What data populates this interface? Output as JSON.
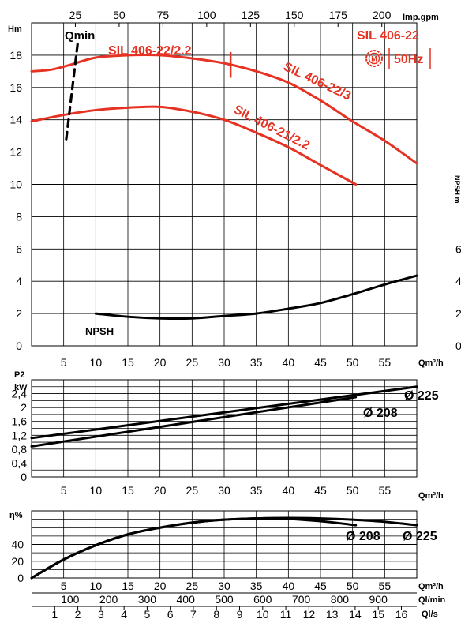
{
  "colors": {
    "curve_red": "#e63222",
    "curve_black": "#000000",
    "grid": "#000000",
    "badge_red": "#e63222"
  },
  "badge": {
    "model": "SIL 406-22",
    "freq": "50Hz",
    "icon": "motor-m-icon"
  },
  "units": {
    "imp_gpm": "Imp.gpm",
    "hm": "Hm",
    "qm3h": "Qm³/h",
    "p2": "P2",
    "kw": "kW",
    "eta": "η%",
    "ql_min": "Ql/min",
    "ql_s": "Ql/s"
  },
  "top_axis_ticks": [
    "25",
    "50",
    "75",
    "100",
    "125",
    "150",
    "175",
    "200"
  ],
  "flow_ticks": [
    "5",
    "10",
    "15",
    "20",
    "25",
    "30",
    "35",
    "40",
    "45",
    "50",
    "55"
  ],
  "lmin_ticks": [
    "100",
    "200",
    "300",
    "400",
    "500",
    "600",
    "700",
    "800",
    "900"
  ],
  "ls_ticks": [
    "1",
    "2",
    "3",
    "4",
    "5",
    "6",
    "7",
    "8",
    "9",
    "10",
    "11",
    "12",
    "13",
    "14",
    "15",
    "16"
  ],
  "chart_data": [
    {
      "type": "line",
      "panel": "head",
      "ylabel": "Hm",
      "y_ticks": [
        "0",
        "2",
        "4",
        "6",
        "8",
        "10",
        "12",
        "14",
        "16",
        "18"
      ],
      "right_ticks": [
        "2",
        "4",
        "6"
      ],
      "ylim": [
        0,
        20
      ],
      "xlim": [
        0,
        60
      ],
      "grid": true,
      "series": [
        {
          "name": "SIL 406-22/3",
          "color": "#e63222",
          "x": [
            0,
            3,
            6,
            10,
            15,
            20,
            25,
            30,
            35,
            40,
            45,
            50,
            55,
            60
          ],
          "y": [
            17.0,
            17.1,
            17.4,
            17.85,
            18.0,
            18.0,
            17.8,
            17.5,
            17.0,
            16.3,
            15.2,
            13.9,
            12.7,
            11.3
          ]
        },
        {
          "name": "SIL 406-21/2.2",
          "color": "#e63222",
          "x": [
            0,
            5,
            10,
            15,
            20,
            25,
            30,
            35,
            40,
            45,
            50.5
          ],
          "y": [
            13.9,
            14.3,
            14.6,
            14.75,
            14.8,
            14.5,
            14.0,
            13.2,
            12.3,
            11.2,
            10.0
          ]
        },
        {
          "name": "NPSH",
          "color": "#000000",
          "x": [
            10,
            15,
            20,
            25,
            30,
            35,
            40,
            45,
            50,
            55,
            60
          ],
          "y": [
            2.0,
            1.8,
            1.7,
            1.7,
            1.85,
            2.0,
            2.3,
            2.65,
            3.2,
            3.8,
            4.35
          ]
        },
        {
          "name": "Qmin",
          "color": "#000000",
          "dashed": true,
          "x": [
            5.4,
            7.2
          ],
          "y": [
            12.8,
            18.8
          ]
        }
      ],
      "labels": {
        "qmin": "Qmin",
        "npsh": "NPSH",
        "sil_2_2": "SIL 406-22/2.2",
        "sil_22_3": "SIL 406-22/3",
        "sil_21_2_2": "SIL 406-21/2.2"
      },
      "marker": {
        "x": 31,
        "y_range": [
          16.6,
          18.0
        ],
        "color": "#e63222"
      }
    },
    {
      "type": "line",
      "panel": "power",
      "ylabel": "kW",
      "y_ticks": [
        "0",
        "0,4",
        "0,8",
        "1,2",
        "1,6",
        "2",
        "2,4"
      ],
      "ylim": [
        0,
        2.8
      ],
      "xlim": [
        0,
        60
      ],
      "grid": true,
      "series": [
        {
          "name": "Ø 225",
          "color": "#000000",
          "x": [
            0,
            60
          ],
          "y": [
            1.12,
            2.6
          ]
        },
        {
          "name": "Ø 208",
          "color": "#000000",
          "x": [
            0,
            50.5
          ],
          "y": [
            0.88,
            2.3
          ]
        }
      ]
    },
    {
      "type": "line",
      "panel": "efficiency",
      "ylabel": "η%",
      "y_ticks": [
        "0",
        "20",
        "40"
      ],
      "ylim": [
        0,
        80
      ],
      "xlim": [
        0,
        60
      ],
      "grid": true,
      "series": [
        {
          "name": "Ø 208",
          "color": "#000000",
          "x": [
            0,
            5,
            10,
            15,
            20,
            25,
            30,
            35,
            38,
            42,
            46,
            50.5
          ],
          "y": [
            0,
            22,
            39,
            52,
            60,
            66,
            69.5,
            71,
            71,
            69.5,
            67,
            63
          ]
        },
        {
          "name": "Ø 225",
          "color": "#000000",
          "x": [
            0,
            5,
            10,
            15,
            20,
            25,
            30,
            35,
            40,
            45,
            50,
            55,
            60
          ],
          "y": [
            0,
            22,
            39,
            52,
            60,
            66,
            69.5,
            71,
            71.5,
            71,
            69.5,
            67,
            63
          ]
        }
      ]
    }
  ]
}
